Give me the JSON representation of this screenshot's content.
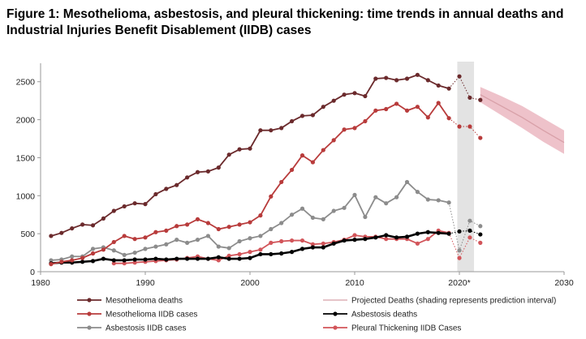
{
  "title": "Figure 1: Mesothelioma, asbestosis, and pleural thickening: time trends in annual deaths and Industrial Injuries Benefit Disablement (IIDB) cases",
  "colors": {
    "meso_deaths": "#6b2a2c",
    "meso_iidb": "#b83b3b",
    "asb_deaths": "#000000",
    "asb_iidb": "#8c8c8c",
    "pleural_iidb": "#d2555a",
    "projection_line": "#d8a0a8",
    "projection_band": "#eab3bd",
    "covid_band": "#e3e3e3",
    "axis": "#9a9a9a"
  },
  "chart_data": {
    "type": "line",
    "title": "Figure 1: Mesothelioma, asbestosis, and pleural thickening: time trends in annual deaths and Industrial Injuries Benefit Disablement (IIDB) cases",
    "xlim": [
      1980,
      2030
    ],
    "ylim": [
      0,
      2700
    ],
    "xticks": [
      1980,
      1990,
      2000,
      2010,
      2020,
      2030
    ],
    "xtick_labels": [
      "1980",
      "1990",
      "2000",
      "2010",
      "2020*",
      "2030"
    ],
    "yticks": [
      0,
      500,
      1000,
      1500,
      2000,
      2500
    ],
    "grid": false,
    "legend_position": "bottom",
    "shaded_region": {
      "label": "2020*",
      "x": [
        2019.8,
        2021.4
      ]
    },
    "series": [
      {
        "name": "Mesothelioma deaths",
        "key": "meso_deaths",
        "x": [
          1981,
          1982,
          1983,
          1984,
          1985,
          1986,
          1987,
          1988,
          1989,
          1990,
          1991,
          1992,
          1993,
          1994,
          1995,
          1996,
          1997,
          1998,
          1999,
          2000,
          2001,
          2002,
          2003,
          2004,
          2005,
          2006,
          2007,
          2008,
          2009,
          2010,
          2011,
          2012,
          2013,
          2014,
          2015,
          2016,
          2017,
          2018,
          2019
        ],
        "values": [
          470,
          510,
          570,
          620,
          610,
          700,
          800,
          860,
          900,
          890,
          1020,
          1090,
          1140,
          1240,
          1310,
          1320,
          1370,
          1540,
          1610,
          1620,
          1860,
          1860,
          1890,
          1980,
          2050,
          2060,
          2170,
          2250,
          2330,
          2350,
          2310,
          2540,
          2550,
          2520,
          2540,
          2590,
          2520,
          2450,
          2410
        ],
        "extra_x": [
          2020,
          2021,
          2022
        ],
        "extra_values": [
          2570,
          2290,
          2260
        ]
      },
      {
        "name": "Mesothelioma IIDB cases",
        "key": "meso_iidb",
        "x": [
          1981,
          1982,
          1983,
          1984,
          1985,
          1986,
          1987,
          1988,
          1989,
          1990,
          1991,
          1992,
          1993,
          1994,
          1995,
          1996,
          1997,
          1998,
          1999,
          2000,
          2001,
          2002,
          2003,
          2004,
          2005,
          2006,
          2007,
          2008,
          2009,
          2010,
          2011,
          2012,
          2013,
          2014,
          2015,
          2016,
          2017,
          2018,
          2019
        ],
        "values": [
          100,
          130,
          150,
          180,
          240,
          290,
          390,
          470,
          430,
          450,
          520,
          540,
          600,
          620,
          690,
          640,
          560,
          590,
          620,
          650,
          740,
          990,
          1180,
          1340,
          1530,
          1440,
          1600,
          1730,
          1870,
          1890,
          1980,
          2120,
          2140,
          2210,
          2120,
          2170,
          2030,
          2220,
          2020
        ],
        "extra_x": [
          2020,
          2021,
          2022
        ],
        "extra_values": [
          1910,
          1910,
          1760
        ]
      },
      {
        "name": "Asbestosis IIDB cases",
        "key": "asb_iidb",
        "x": [
          1981,
          1982,
          1983,
          1984,
          1985,
          1986,
          1987,
          1988,
          1989,
          1990,
          1991,
          1992,
          1993,
          1994,
          1995,
          1996,
          1997,
          1998,
          1999,
          2000,
          2001,
          2002,
          2003,
          2004,
          2005,
          2006,
          2007,
          2008,
          2009,
          2010,
          2011,
          2012,
          2013,
          2014,
          2015,
          2016,
          2017,
          2018,
          2019
        ],
        "values": [
          150,
          160,
          200,
          200,
          300,
          320,
          280,
          220,
          250,
          300,
          330,
          360,
          420,
          380,
          420,
          470,
          330,
          310,
          400,
          440,
          470,
          560,
          640,
          750,
          830,
          710,
          690,
          800,
          840,
          1010,
          720,
          980,
          900,
          980,
          1180,
          1050,
          950,
          940,
          910
        ],
        "extra_x": [
          2020,
          2021,
          2022
        ],
        "extra_values": [
          280,
          670,
          600
        ]
      },
      {
        "name": "Projected Deaths (shading represents prediction interval)",
        "key": "projection",
        "x": [
          2022,
          2024,
          2026,
          2028,
          2030
        ],
        "values": [
          2330,
          2180,
          2030,
          1860,
          1700
        ],
        "lower": [
          2230,
          2060,
          1890,
          1710,
          1550
        ],
        "upper": [
          2430,
          2310,
          2180,
          2020,
          1860
        ]
      },
      {
        "name": "Asbestosis deaths",
        "key": "asb_deaths",
        "x": [
          1981,
          1982,
          1983,
          1984,
          1985,
          1986,
          1987,
          1988,
          1989,
          1990,
          1991,
          1992,
          1993,
          1994,
          1995,
          1996,
          1997,
          1998,
          1999,
          2000,
          2001,
          2002,
          2003,
          2004,
          2005,
          2006,
          2007,
          2008,
          2009,
          2010,
          2011,
          2012,
          2013,
          2014,
          2015,
          2016,
          2017,
          2018,
          2019
        ],
        "values": [
          110,
          120,
          120,
          130,
          140,
          170,
          150,
          150,
          160,
          160,
          170,
          160,
          170,
          170,
          170,
          170,
          190,
          170,
          170,
          180,
          230,
          230,
          240,
          260,
          300,
          320,
          320,
          370,
          410,
          420,
          430,
          450,
          480,
          450,
          460,
          500,
          520,
          510,
          500
        ],
        "extra_x": [
          2020,
          2021,
          2022
        ],
        "extra_values": [
          530,
          540,
          490
        ]
      },
      {
        "name": "Pleural Thickening IIDB Cases",
        "key": "pleural_iidb",
        "x": [
          1987,
          1988,
          1989,
          1990,
          1991,
          1992,
          1993,
          1994,
          1995,
          1996,
          1997,
          1998,
          1999,
          2000,
          2001,
          2002,
          2003,
          2004,
          2005,
          2006,
          2007,
          2008,
          2009,
          2010,
          2011,
          2012,
          2013,
          2014,
          2015,
          2016,
          2017,
          2018,
          2019
        ],
        "values": [
          110,
          110,
          120,
          130,
          140,
          150,
          160,
          180,
          200,
          170,
          150,
          210,
          230,
          260,
          290,
          380,
          400,
          410,
          410,
          360,
          370,
          390,
          420,
          480,
          460,
          460,
          430,
          430,
          430,
          370,
          430,
          540,
          510
        ],
        "extra_x": [
          2020,
          2021,
          2022
        ],
        "extra_values": [
          180,
          450,
          380
        ]
      }
    ]
  }
}
